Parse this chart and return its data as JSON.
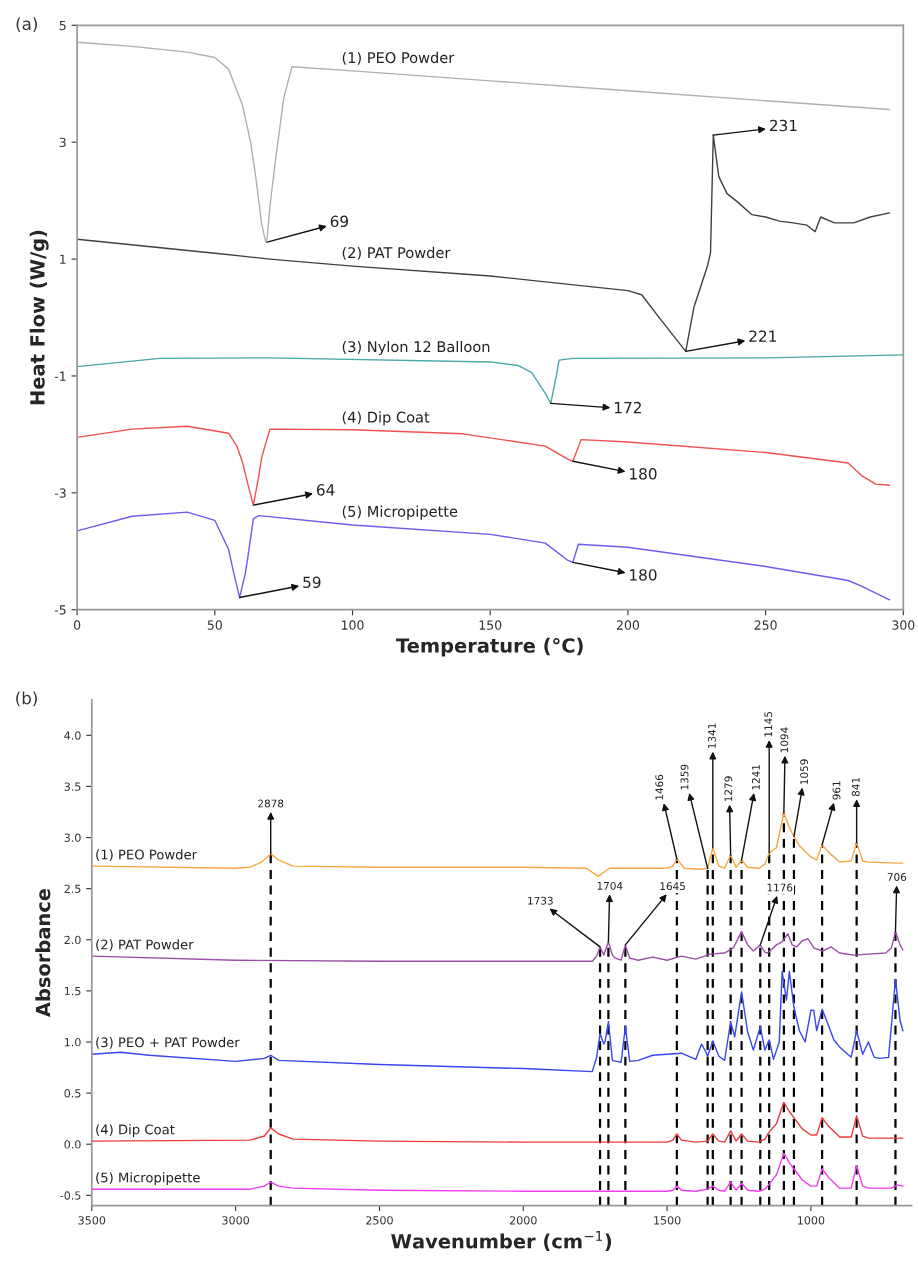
{
  "chart_data": [
    {
      "type": "line",
      "title": "(a)",
      "xlabel": "Temperature (°C)",
      "ylabel": "Heat Flow (W/g)",
      "xlim": [
        0,
        300
      ],
      "xticks": [
        0,
        50,
        100,
        150,
        200,
        250,
        300
      ],
      "ylim": [
        -5,
        5
      ],
      "yticks": [
        -5,
        -3,
        -1,
        1,
        3,
        5
      ],
      "grid": false,
      "legend": false,
      "series": [
        {
          "name": "(1) PEO Powder",
          "color": "#b0b0b0",
          "x": [
            0,
            20,
            40,
            50,
            55,
            60,
            63,
            65,
            67,
            68.5,
            69,
            70,
            72,
            75,
            78,
            100,
            150,
            200,
            250,
            295
          ],
          "values": [
            4.71,
            4.64,
            4.54,
            4.45,
            4.25,
            3.64,
            3.0,
            2.36,
            1.6,
            1.29,
            1.35,
            1.9,
            2.68,
            3.75,
            4.29,
            4.22,
            4.05,
            3.88,
            3.71,
            3.56
          ]
        },
        {
          "name": "(2) PAT Powder",
          "color": "#404040",
          "x": [
            0,
            50,
            70,
            100,
            150,
            200,
            205,
            212,
            218,
            221,
            224,
            229,
            230,
            231,
            233,
            236,
            240,
            245,
            250,
            255,
            260,
            265,
            268,
            270,
            275,
            282,
            288,
            295
          ],
          "values": [
            1.34,
            1.1,
            1.0,
            0.88,
            0.71,
            0.46,
            0.39,
            -0.04,
            -0.4,
            -0.58,
            0.18,
            0.9,
            1.11,
            3.12,
            2.41,
            2.12,
            1.97,
            1.76,
            1.72,
            1.65,
            1.62,
            1.58,
            1.47,
            1.72,
            1.62,
            1.62,
            1.72,
            1.79
          ]
        },
        {
          "name": "(3) Nylon 12 Balloon",
          "color": "#4aa8a8",
          "x": [
            0,
            30,
            70,
            150,
            160,
            165,
            170,
            172,
            174,
            175,
            180,
            250,
            300
          ],
          "values": [
            -0.84,
            -0.7,
            -0.69,
            -0.76,
            -0.82,
            -0.94,
            -1.3,
            -1.47,
            -1.0,
            -0.73,
            -0.7,
            -0.69,
            -0.64
          ]
        },
        {
          "name": "(4) Dip Coat",
          "color": "#f05050",
          "x": [
            0,
            20,
            40,
            55,
            58,
            60,
            62,
            64,
            66,
            67,
            70,
            100,
            140,
            170,
            178,
            180,
            183,
            200,
            250,
            280,
            285,
            290,
            295
          ],
          "values": [
            -2.05,
            -1.91,
            -1.86,
            -1.98,
            -2.2,
            -2.47,
            -2.85,
            -3.21,
            -2.7,
            -2.4,
            -1.91,
            -1.92,
            -1.99,
            -2.2,
            -2.42,
            -2.46,
            -2.09,
            -2.13,
            -2.31,
            -2.49,
            -2.71,
            -2.85,
            -2.87
          ]
        },
        {
          "name": "(5) Micropipette",
          "color": "#6a5cf0",
          "x": [
            0,
            20,
            40,
            50,
            55,
            57,
            59,
            61,
            62,
            64,
            66,
            100,
            150,
            170,
            178,
            180,
            182,
            200,
            250,
            280,
            285,
            295
          ],
          "values": [
            -3.65,
            -3.4,
            -3.33,
            -3.47,
            -3.97,
            -4.4,
            -4.79,
            -4.4,
            -4.1,
            -3.44,
            -3.39,
            -3.55,
            -3.71,
            -3.86,
            -4.15,
            -4.19,
            -3.88,
            -3.93,
            -4.26,
            -4.5,
            -4.6,
            -4.83
          ]
        }
      ],
      "annotations": [
        {
          "text": "69",
          "x": 69,
          "y": 1.29
        },
        {
          "text": "231",
          "x": 231,
          "y": 3.12
        },
        {
          "text": "221",
          "x": 221,
          "y": -0.58
        },
        {
          "text": "172",
          "x": 172,
          "y": -1.47
        },
        {
          "text": "64",
          "x": 64,
          "y": -3.21
        },
        {
          "text": "180",
          "x": 180,
          "y": -2.46
        },
        {
          "text": "59",
          "x": 59,
          "y": -4.79
        },
        {
          "text": "180",
          "x": 180,
          "y": -4.19
        }
      ]
    },
    {
      "type": "line",
      "title": "(b)",
      "xlabel": "Wavenumber (cm$^{−1}$)",
      "ylabel": "Absorbance",
      "xlim": [
        3500,
        650
      ],
      "xticks": [
        3500,
        3000,
        2500,
        2000,
        1500,
        1000
      ],
      "ylim": [
        -0.6,
        4.35
      ],
      "yticks": [
        {
          "value": -0.5,
          "label": "-0.5"
        },
        {
          "value": 0,
          "label": "0.0"
        },
        {
          "value": 0.5,
          "label": "0.5"
        },
        {
          "value": 1,
          "label": "1.0"
        },
        {
          "value": 1.5,
          "label": "1.5"
        },
        {
          "value": 2,
          "label": "2.0"
        },
        {
          "value": 2.5,
          "label": "2.5"
        },
        {
          "value": 3,
          "label": "3.0"
        },
        {
          "value": 3.5,
          "label": "3.5"
        },
        {
          "value": 4,
          "label": "4.0"
        }
      ],
      "grid": false,
      "legend": false,
      "series": [
        {
          "name": "(1) PEO Powder",
          "color": "#f7a843",
          "x": [
            3500,
            3000,
            2950,
            2910,
            2878,
            2850,
            2800,
            2500,
            2000,
            1780,
            1740,
            1700,
            1500,
            1480,
            1466,
            1440,
            1380,
            1359,
            1341,
            1320,
            1300,
            1279,
            1260,
            1241,
            1220,
            1180,
            1160,
            1145,
            1120,
            1094,
            1075,
            1059,
            1040,
            1000,
            980,
            961,
            940,
            900,
            860,
            841,
            820,
            800,
            700,
            680
          ],
          "values": [
            2.72,
            2.7,
            2.71,
            2.76,
            2.84,
            2.78,
            2.72,
            2.71,
            2.71,
            2.7,
            2.62,
            2.7,
            2.7,
            2.72,
            2.79,
            2.7,
            2.69,
            2.7,
            2.9,
            2.72,
            2.7,
            2.83,
            2.71,
            2.78,
            2.71,
            2.7,
            2.74,
            2.85,
            2.9,
            3.24,
            3.1,
            3.01,
            2.92,
            2.81,
            2.78,
            2.93,
            2.86,
            2.76,
            2.77,
            2.95,
            2.77,
            2.76,
            2.75,
            2.75
          ]
        },
        {
          "name": "(2) PAT Powder",
          "color": "#9b4ea6",
          "x": [
            3500,
            3000,
            2500,
            2000,
            1760,
            1745,
            1733,
            1720,
            1704,
            1690,
            1680,
            1660,
            1645,
            1630,
            1600,
            1550,
            1500,
            1450,
            1400,
            1350,
            1300,
            1270,
            1241,
            1220,
            1200,
            1176,
            1160,
            1150,
            1120,
            1100,
            1080,
            1065,
            1050,
            1030,
            1010,
            990,
            960,
            930,
            900,
            850,
            800,
            740,
            720,
            706,
            690,
            680
          ],
          "values": [
            1.84,
            1.8,
            1.79,
            1.79,
            1.79,
            1.84,
            1.93,
            1.85,
            1.98,
            1.85,
            1.82,
            1.8,
            1.95,
            1.82,
            1.8,
            1.83,
            1.8,
            1.84,
            1.81,
            1.86,
            1.87,
            1.92,
            2.08,
            1.95,
            1.89,
            1.95,
            1.88,
            1.87,
            1.95,
            1.98,
            2.06,
            1.95,
            1.93,
            1.99,
            2.01,
            1.92,
            1.89,
            1.93,
            1.87,
            1.85,
            1.86,
            1.87,
            1.92,
            2.08,
            1.95,
            1.9
          ]
        },
        {
          "name": "(3) PEO + PAT Powder",
          "color": "#3845f0",
          "x": [
            3500,
            3400,
            3300,
            3000,
            2900,
            2878,
            2850,
            2500,
            2000,
            1760,
            1745,
            1733,
            1720,
            1715,
            1704,
            1690,
            1660,
            1645,
            1630,
            1600,
            1550,
            1500,
            1450,
            1400,
            1380,
            1365,
            1359,
            1341,
            1320,
            1300,
            1290,
            1279,
            1265,
            1241,
            1220,
            1200,
            1176,
            1160,
            1145,
            1130,
            1110,
            1100,
            1085,
            1075,
            1059,
            1040,
            1020,
            1000,
            990,
            980,
            961,
            940,
            920,
            900,
            880,
            860,
            841,
            820,
            800,
            780,
            760,
            730,
            706,
            690,
            680
          ],
          "values": [
            0.88,
            0.9,
            0.87,
            0.81,
            0.84,
            0.87,
            0.82,
            0.78,
            0.74,
            0.71,
            0.85,
            1.08,
            0.98,
            1.01,
            1.2,
            0.82,
            0.8,
            1.15,
            0.81,
            0.82,
            0.87,
            0.88,
            0.89,
            0.83,
            0.98,
            0.9,
            0.86,
            1.01,
            0.86,
            0.82,
            1.0,
            1.2,
            1.05,
            1.49,
            1.1,
            0.92,
            1.15,
            0.92,
            1.02,
            0.83,
            1.0,
            1.69,
            1.41,
            1.69,
            1.34,
            1.11,
            1.0,
            1.31,
            1.31,
            1.11,
            1.32,
            1.17,
            1.02,
            0.95,
            0.9,
            0.85,
            1.11,
            0.88,
            1.0,
            0.85,
            0.84,
            0.85,
            1.61,
            1.21,
            1.11
          ]
        },
        {
          "name": "(4) Dip Coat",
          "color": "#ef3b3b",
          "x": [
            3500,
            2950,
            2900,
            2878,
            2850,
            2800,
            2500,
            2000,
            1500,
            1480,
            1466,
            1450,
            1400,
            1359,
            1341,
            1320,
            1300,
            1279,
            1260,
            1241,
            1220,
            1180,
            1160,
            1145,
            1120,
            1094,
            1075,
            1059,
            1030,
            1000,
            980,
            961,
            940,
            900,
            860,
            841,
            820,
            800,
            680
          ],
          "values": [
            0.03,
            0.04,
            0.08,
            0.16,
            0.1,
            0.05,
            0.03,
            0.02,
            0.02,
            0.04,
            0.1,
            0.04,
            0.02,
            0.03,
            0.1,
            0.03,
            0.02,
            0.13,
            0.03,
            0.1,
            0.03,
            0.02,
            0.05,
            0.12,
            0.2,
            0.41,
            0.32,
            0.26,
            0.15,
            0.09,
            0.09,
            0.26,
            0.18,
            0.07,
            0.07,
            0.28,
            0.08,
            0.06,
            0.06
          ]
        },
        {
          "name": "(5) Micropipette",
          "color": "#f03cf0",
          "x": [
            3500,
            2950,
            2900,
            2878,
            2850,
            2800,
            2500,
            2000,
            1500,
            1480,
            1466,
            1450,
            1400,
            1359,
            1341,
            1320,
            1300,
            1279,
            1260,
            1241,
            1220,
            1180,
            1160,
            1145,
            1120,
            1094,
            1075,
            1059,
            1030,
            1000,
            980,
            961,
            940,
            900,
            860,
            841,
            820,
            800,
            720,
            700,
            680
          ],
          "values": [
            -0.44,
            -0.44,
            -0.41,
            -0.37,
            -0.41,
            -0.43,
            -0.45,
            -0.46,
            -0.46,
            -0.45,
            -0.41,
            -0.45,
            -0.46,
            -0.44,
            -0.41,
            -0.45,
            -0.46,
            -0.37,
            -0.45,
            -0.38,
            -0.45,
            -0.46,
            -0.44,
            -0.39,
            -0.3,
            -0.09,
            -0.18,
            -0.24,
            -0.35,
            -0.41,
            -0.41,
            -0.24,
            -0.32,
            -0.43,
            -0.43,
            -0.21,
            -0.41,
            -0.43,
            -0.43,
            -0.4,
            -0.41
          ]
        }
      ],
      "annotations": [
        {
          "text": "2878",
          "x": 2878,
          "y": 2.84
        },
        {
          "text": "1466",
          "x": 1466,
          "y": 2.79
        },
        {
          "text": "1359",
          "x": 1359,
          "y": 2.7
        },
        {
          "text": "1341",
          "x": 1341,
          "y": 2.9
        },
        {
          "text": "1279",
          "x": 1279,
          "y": 2.83
        },
        {
          "text": "1241",
          "x": 1241,
          "y": 2.78
        },
        {
          "text": "1145",
          "x": 1145,
          "y": 2.85
        },
        {
          "text": "1094",
          "x": 1094,
          "y": 3.24
        },
        {
          "text": "1059",
          "x": 1059,
          "y": 3.01
        },
        {
          "text": "961",
          "x": 961,
          "y": 2.93
        },
        {
          "text": "841",
          "x": 841,
          "y": 2.95
        },
        {
          "text": "1733",
          "x": 1733,
          "y": 1.93
        },
        {
          "text": "1704",
          "x": 1704,
          "y": 1.98
        },
        {
          "text": "1645",
          "x": 1645,
          "y": 1.95
        },
        {
          "text": "1176",
          "x": 1176,
          "y": 1.95
        },
        {
          "text": "706",
          "x": 706,
          "y": 2.08
        }
      ],
      "ref_lines": [
        {
          "axis": "x",
          "value": 2878,
          "color": "#000000",
          "line_style": "dashed"
        },
        {
          "axis": "x",
          "value": 1466,
          "color": "#000000",
          "line_style": "dashed"
        },
        {
          "axis": "x",
          "value": 1359,
          "color": "#000000",
          "line_style": "dashed"
        },
        {
          "axis": "x",
          "value": 1341,
          "color": "#000000",
          "line_style": "dashed"
        },
        {
          "axis": "x",
          "value": 1279,
          "color": "#000000",
          "line_style": "dashed"
        },
        {
          "axis": "x",
          "value": 1241,
          "color": "#000000",
          "line_style": "dashed"
        },
        {
          "axis": "x",
          "value": 1145,
          "color": "#000000",
          "line_style": "dashed"
        },
        {
          "axis": "x",
          "value": 1094,
          "color": "#000000",
          "line_style": "dashed"
        },
        {
          "axis": "x",
          "value": 1059,
          "color": "#000000",
          "line_style": "dashed"
        },
        {
          "axis": "x",
          "value": 961,
          "color": "#000000",
          "line_style": "dashed"
        },
        {
          "axis": "x",
          "value": 841,
          "color": "#000000",
          "line_style": "dashed"
        },
        {
          "axis": "x",
          "value": 1733,
          "color": "#000000",
          "line_style": "dashed"
        },
        {
          "axis": "x",
          "value": 1704,
          "color": "#000000",
          "line_style": "dashed"
        },
        {
          "axis": "x",
          "value": 1645,
          "color": "#000000",
          "line_style": "dashed"
        },
        {
          "axis": "x",
          "value": 1176,
          "color": "#000000",
          "line_style": "dashed"
        },
        {
          "axis": "x",
          "value": 706,
          "color": "#000000",
          "line_style": "dashed"
        }
      ]
    }
  ]
}
